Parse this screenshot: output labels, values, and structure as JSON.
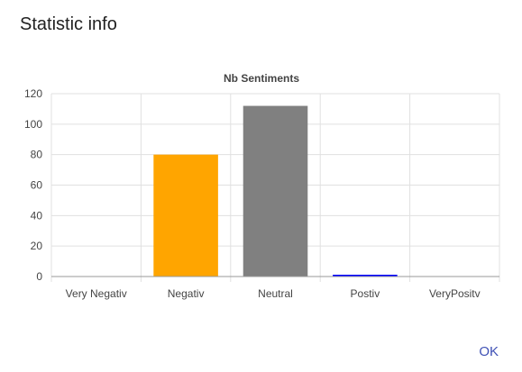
{
  "dialog": {
    "title": "Statistic info",
    "ok_label": "OK"
  },
  "chart_data": {
    "type": "bar",
    "title": "Nb Sentiments",
    "categories": [
      "Very Negativ",
      "Negativ",
      "Neutral",
      "Postiv",
      "VeryPositv"
    ],
    "values": [
      0,
      80,
      112,
      1,
      0
    ],
    "colors": [
      "#3366cc",
      "#ffa500",
      "#808080",
      "#0000ff",
      "#3366cc"
    ],
    "ylim": [
      0,
      120
    ],
    "yticks": [
      0,
      20,
      40,
      60,
      80,
      100,
      120
    ],
    "grid": true,
    "xlabel": "",
    "ylabel": ""
  }
}
